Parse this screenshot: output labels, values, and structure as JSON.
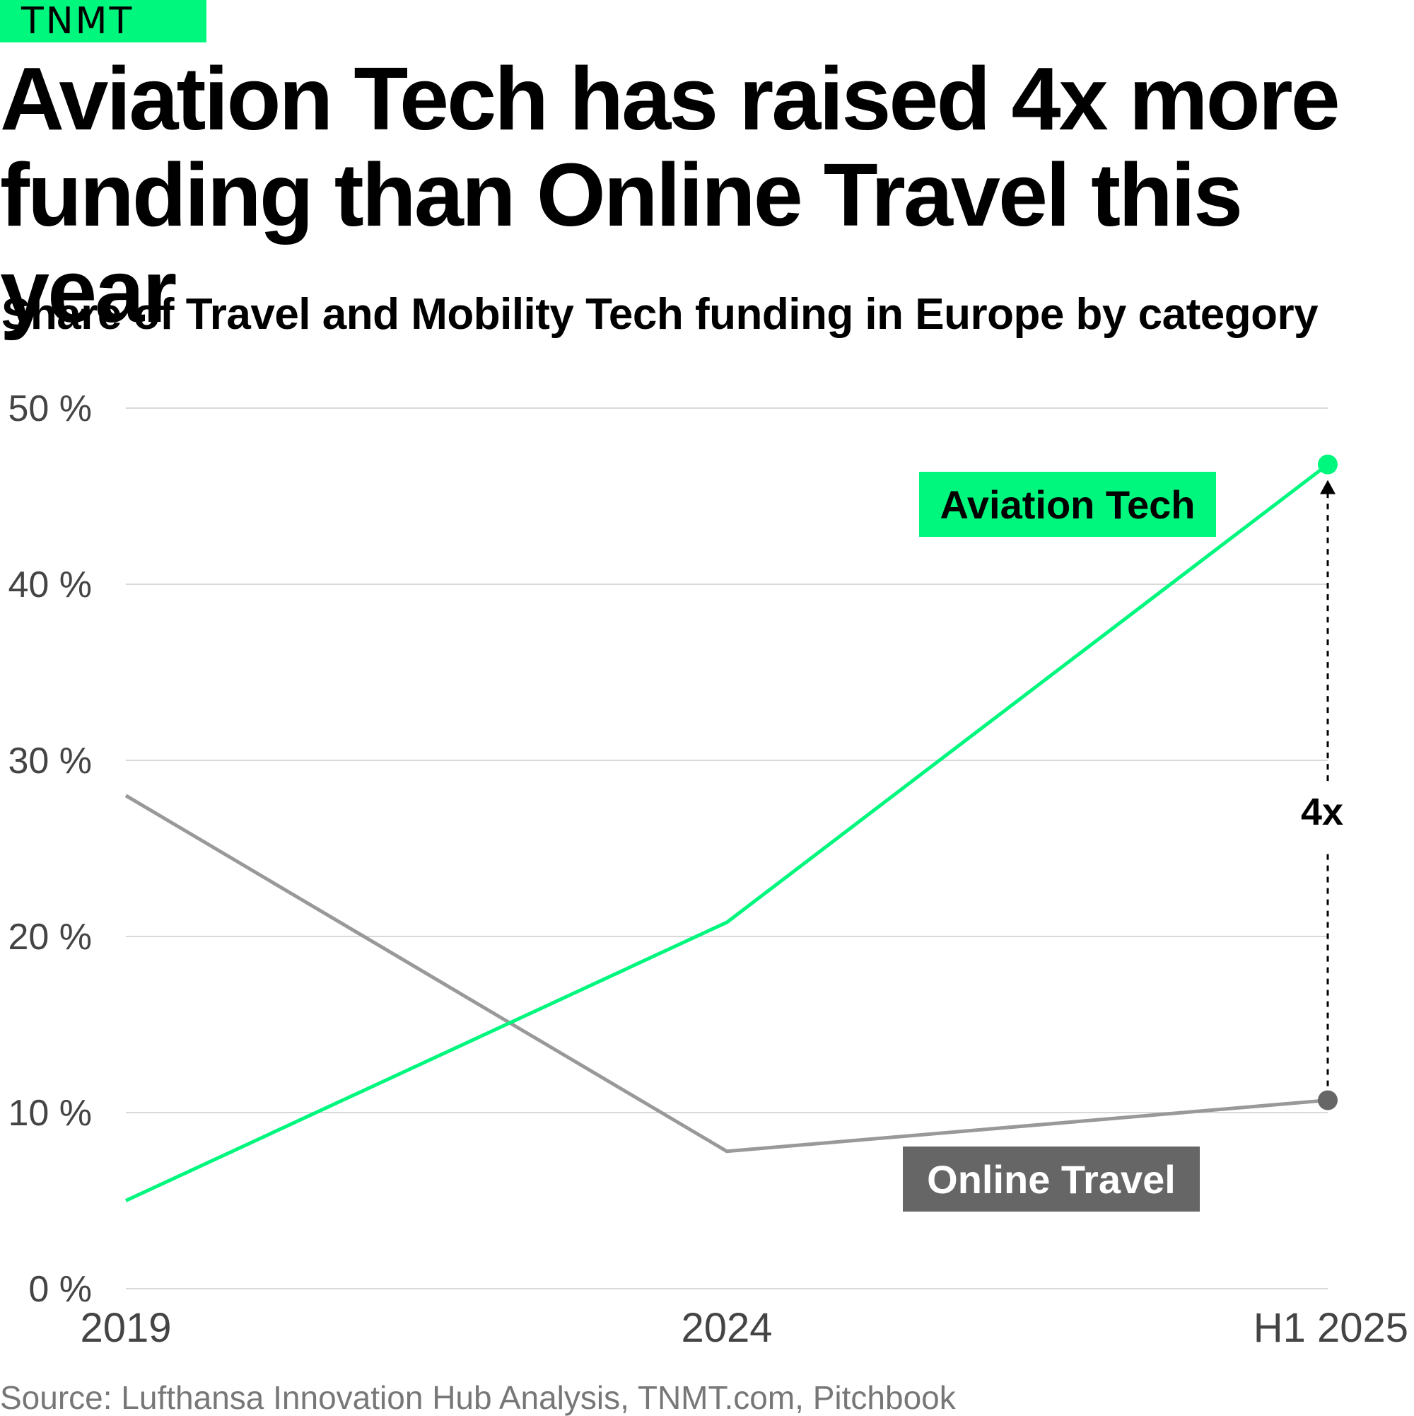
{
  "brand": {
    "logo_text": "TNMT",
    "accent": "#00f77e"
  },
  "title": "Aviation Tech has raised 4x more funding than Online Travel this year",
  "subtitle": "Share of Travel and Mobility Tech funding in Europe by category",
  "source": "Source: Lufthansa Innovation Hub Analysis, TNMT.com, Pitchbook",
  "chart_data": {
    "type": "line",
    "title": "Aviation Tech has raised 4x more funding than Online Travel this year",
    "subtitle": "Share of Travel and Mobility Tech funding in Europe by category",
    "categories": [
      "2019",
      "2024",
      "H1 2025"
    ],
    "series": [
      {
        "name": "Aviation Tech",
        "values": [
          5,
          20.8,
          46.8
        ],
        "color": "#00f77e",
        "label_bg": "#00f77e",
        "label_color": "#000000"
      },
      {
        "name": "Online Travel",
        "values": [
          28,
          7.8,
          10.7
        ],
        "color": "#999999",
        "label_bg": "#666666",
        "label_color": "#ffffff"
      }
    ],
    "ylim": [
      0,
      50
    ],
    "yticks": [
      0,
      10,
      20,
      30,
      40,
      50
    ],
    "ytick_labels": [
      "0 %",
      "10 %",
      "20 %",
      "30 %",
      "40 %",
      "50 %"
    ],
    "grid": true,
    "annotation": {
      "text": "4x",
      "category": "H1 2025",
      "from": 10.7,
      "to": 46.8
    },
    "xlabel": "",
    "ylabel": ""
  }
}
